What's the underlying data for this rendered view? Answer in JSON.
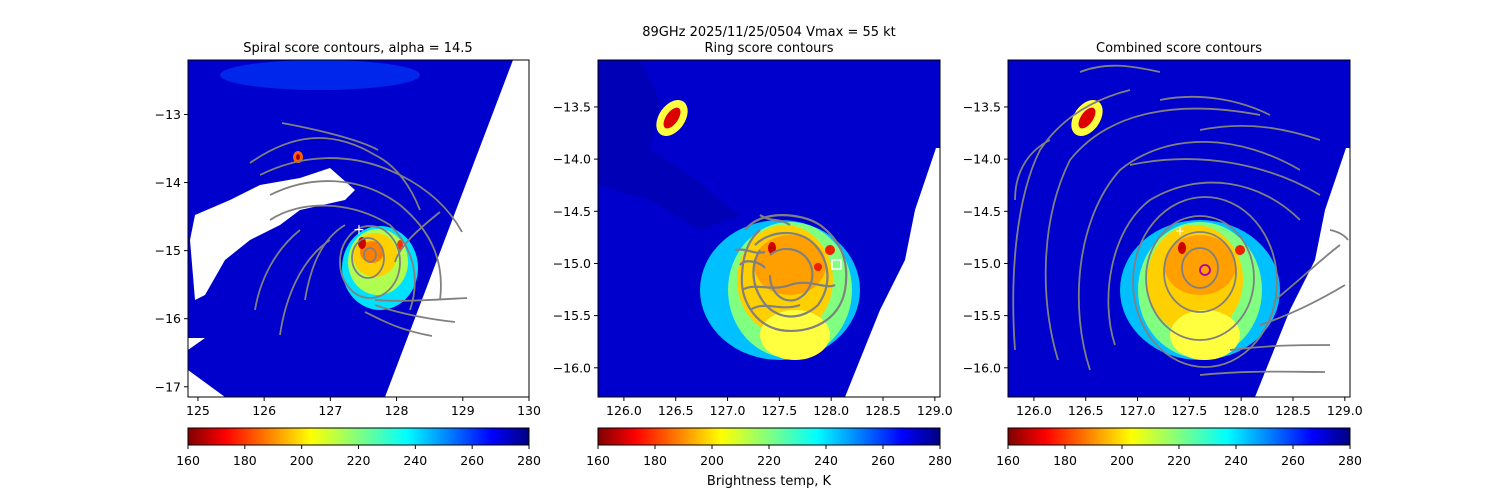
{
  "suptitle": "89GHz  2025/11/25/0504    Vmax = 55 kt",
  "colorbar_label": "Brightness temp, K",
  "chart_data": [
    {
      "type": "heatmap",
      "title": "Spiral score contours, alpha = 14.5",
      "xlim": [
        124.85,
        130.0
      ],
      "ylim": [
        -17.15,
        -12.2
      ],
      "xticks": [
        125,
        126,
        127,
        128,
        129,
        130
      ],
      "yticks": [
        -13,
        -14,
        -15,
        -16,
        -17
      ],
      "center_marker": {
        "x": 127.4,
        "y": -14.9,
        "symbol": "+"
      },
      "storm_center": {
        "x": 127.6,
        "y": -15.1
      },
      "colorbar": {
        "min": 160,
        "max": 280,
        "ticks": [
          160,
          180,
          200,
          220,
          240,
          260,
          280
        ],
        "colormap": "jet_r"
      }
    },
    {
      "type": "heatmap",
      "title": "Ring score contours",
      "xlim": [
        125.75,
        129.05
      ],
      "ylim": [
        -16.28,
        -13.05
      ],
      "xticks": [
        126.0,
        126.5,
        127.0,
        127.5,
        128.0,
        128.5,
        129.0
      ],
      "yticks": [
        -13.5,
        -14.0,
        -14.5,
        -15.0,
        -15.5,
        -16.0
      ],
      "center_marker": {
        "x": 128.07,
        "y": -15.02,
        "symbol": "square"
      },
      "storm_center": {
        "x": 127.65,
        "y": -15.1
      },
      "colorbar": {
        "min": 160,
        "max": 280,
        "ticks": [
          160,
          180,
          200,
          220,
          240,
          260,
          280
        ],
        "colormap": "jet_r"
      }
    },
    {
      "type": "heatmap",
      "title": "Combined score contours",
      "xlim": [
        125.75,
        129.05
      ],
      "ylim": [
        -16.28,
        -13.05
      ],
      "xticks": [
        126.0,
        126.5,
        127.0,
        127.5,
        128.0,
        128.5,
        129.0
      ],
      "yticks": [
        -13.5,
        -14.0,
        -14.5,
        -15.0,
        -15.5,
        -16.0
      ],
      "center_marker": {
        "x": 127.68,
        "y": -15.06,
        "symbol": "circle"
      },
      "storm_center": {
        "x": 127.65,
        "y": -15.1
      },
      "colorbar": {
        "min": 160,
        "max": 280,
        "ticks": [
          160,
          180,
          200,
          220,
          240,
          260,
          280
        ],
        "colormap": "jet_r"
      }
    }
  ]
}
